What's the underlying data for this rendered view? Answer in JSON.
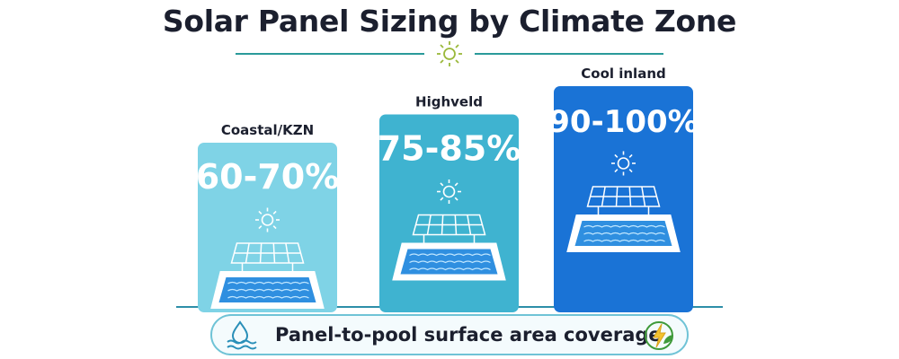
{
  "chart_data": {
    "type": "bar",
    "title": "Solar Panel Sizing by Climate Zone",
    "categories": [
      "Coastal/KZN",
      "Highveld",
      "Cool inland"
    ],
    "value_labels": [
      "60-70%",
      "75-85%",
      "90-100%"
    ],
    "values_low": [
      60,
      75,
      90
    ],
    "values_high": [
      70,
      85,
      100
    ],
    "unit": "%",
    "colors": [
      "#7fd3e6",
      "#3fb3d0",
      "#1a73d6"
    ],
    "grid": false,
    "legend": "none"
  },
  "footer": {
    "label": "Panel-to-pool surface area coverage",
    "left_icon": "water-drop-icon",
    "right_icon": "eco-energy-icon"
  },
  "header": {
    "divider_icon": "sun-icon"
  }
}
